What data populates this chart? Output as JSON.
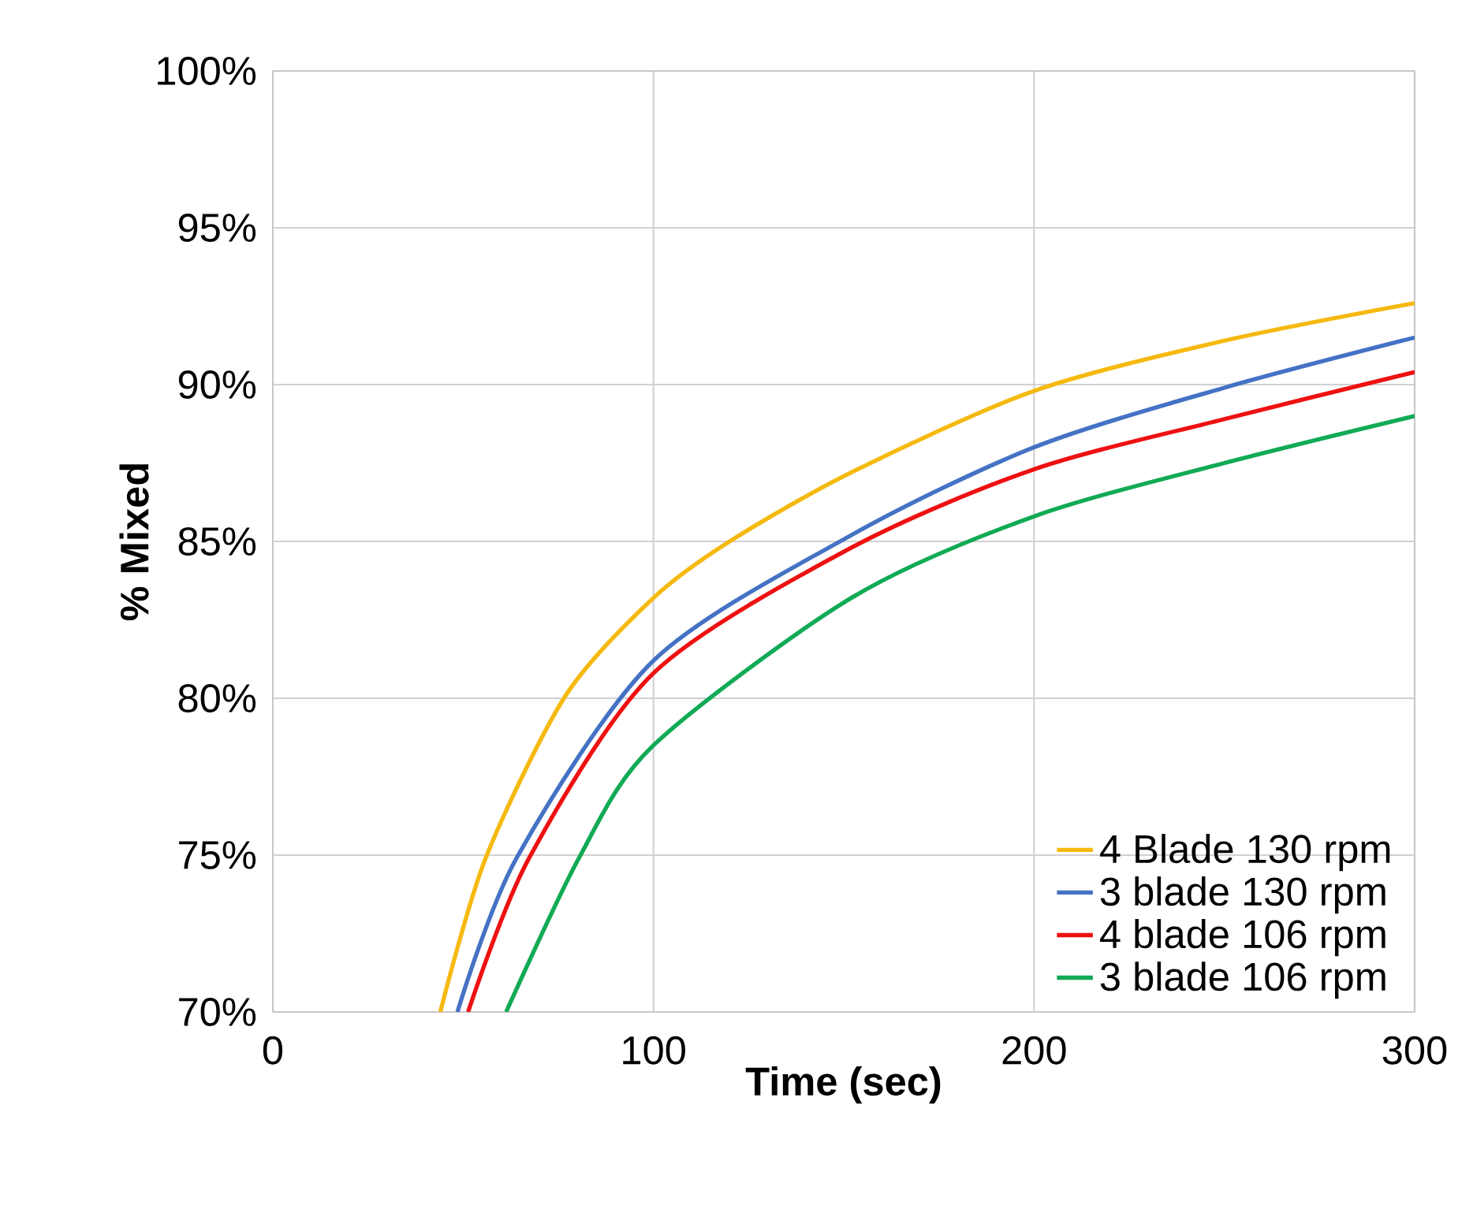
{
  "chart_data": {
    "type": "line",
    "xlabel": "Time (sec)",
    "ylabel": "% Mixed",
    "xlim": [
      0,
      300
    ],
    "xticks": [
      0,
      100,
      200,
      300
    ],
    "ylim": [
      70,
      100
    ],
    "yticks": [
      {
        "value": 70,
        "label": "70%"
      },
      {
        "value": 75,
        "label": "75%"
      },
      {
        "value": 80,
        "label": "80%"
      },
      {
        "value": 85,
        "label": "85%"
      },
      {
        "value": 90,
        "label": "90%"
      },
      {
        "value": 95,
        "label": "95%"
      },
      {
        "value": 100,
        "label": "100%"
      }
    ],
    "grid": true,
    "legend": "bottom right",
    "marker": "none",
    "line_style": "solid",
    "series": [
      {
        "name": "4 Blade 130 rpm",
        "color": "#f5b90f",
        "x": [
          44,
          55.9,
          77,
          100,
          120,
          152,
          200,
          250,
          300
        ],
        "values": [
          70,
          74.9,
          80.1,
          83.2,
          85.0,
          87.2,
          89.8,
          91.4,
          92.6
        ]
      },
      {
        "name": "3 blade 130 rpm",
        "color": "#4472c4",
        "x": [
          48.5,
          64,
          100,
          152,
          200,
          250,
          300
        ],
        "values": [
          70,
          74.9,
          81.2,
          85.2,
          88.0,
          89.9,
          91.5
        ]
      },
      {
        "name": "4 blade 106 rpm",
        "color": "#ee1111",
        "x": [
          51.3,
          67.3,
          100,
          152,
          200,
          250,
          300
        ],
        "values": [
          70,
          74.9,
          80.8,
          84.8,
          87.3,
          88.9,
          90.4
        ]
      },
      {
        "name": "3 blade 106 rpm",
        "color": "#11aa55",
        "x": [
          61.3,
          80.4,
          100,
          152,
          200,
          250,
          300
        ],
        "values": [
          70,
          74.9,
          78.5,
          83.2,
          85.8,
          87.5,
          89.0
        ]
      }
    ]
  }
}
